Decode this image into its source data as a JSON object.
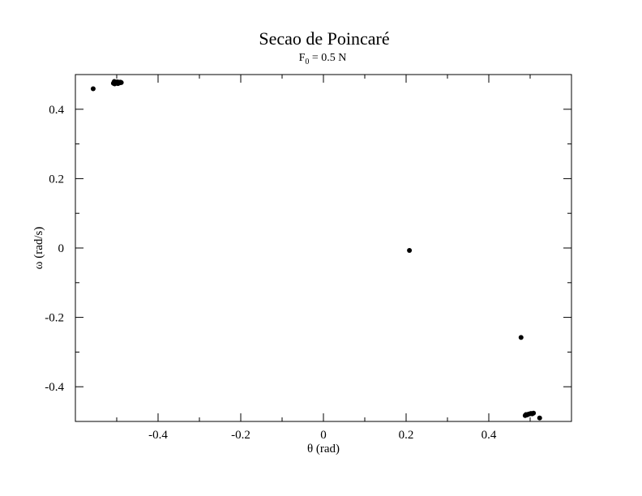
{
  "chart_data": {
    "type": "scatter",
    "title": "Secao de Poincaré",
    "subtitle": {
      "prefix": "F",
      "subscript": "0",
      "suffix": " = 0.5 N"
    },
    "xlabel": "θ (rad)",
    "ylabel": "ω (rad/s)",
    "xlim": [
      -0.6,
      0.6
    ],
    "ylim": [
      -0.5,
      0.5
    ],
    "x_ticks": [
      -0.4,
      -0.2,
      0,
      0.2,
      0.4
    ],
    "x_tick_labels": [
      "-0.4",
      "-0.2",
      "0",
      "0.2",
      "0.4"
    ],
    "y_ticks": [
      -0.4,
      -0.2,
      0,
      0.2,
      0.4
    ],
    "y_tick_labels": [
      "-0.4",
      "-0.2",
      "0",
      "0.2",
      "0.4"
    ],
    "grid": false,
    "legend": "none",
    "marker_color": "#000000",
    "series": [
      {
        "points": [
          [
            -0.557,
            0.459
          ],
          [
            -0.508,
            0.475
          ],
          [
            -0.506,
            0.48
          ],
          [
            -0.505,
            0.473
          ],
          [
            -0.503,
            0.478
          ],
          [
            -0.501,
            0.476
          ],
          [
            -0.499,
            0.479
          ],
          [
            -0.497,
            0.474
          ],
          [
            -0.495,
            0.478
          ],
          [
            -0.493,
            0.476
          ],
          [
            -0.491,
            0.478
          ],
          [
            -0.489,
            0.477
          ],
          [
            0.208,
            -0.007
          ],
          [
            0.478,
            -0.258
          ],
          [
            0.488,
            -0.483
          ],
          [
            0.49,
            -0.48
          ],
          [
            0.493,
            -0.481
          ],
          [
            0.496,
            -0.479
          ],
          [
            0.499,
            -0.478
          ],
          [
            0.502,
            -0.477
          ],
          [
            0.505,
            -0.478
          ],
          [
            0.508,
            -0.476
          ],
          [
            0.523,
            -0.49
          ]
        ]
      }
    ]
  }
}
